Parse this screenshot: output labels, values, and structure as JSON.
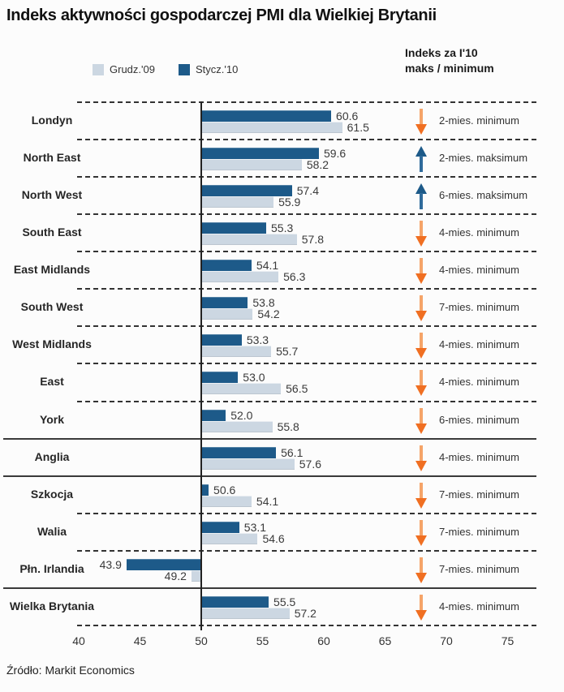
{
  "title": "Indeks aktywności gospodarczej PMI dla Wielkiej Brytanii",
  "legend": {
    "items": [
      {
        "label": "Grudz.'09",
        "color": "#ccd7e2"
      },
      {
        "label": "Stycz.'10",
        "color": "#1d5a89"
      }
    ]
  },
  "right_header": {
    "line1": "Indeks za I'10",
    "line2": "maks / minimum"
  },
  "source": "Źródło: Markit Economics",
  "colors": {
    "bar_dark": "#1d5a89",
    "bar_light": "#ccd7e2",
    "arrow_down": "#f06f22",
    "arrow_down_stem": "#f5a469",
    "arrow_up": "#1d5a89",
    "arrow_up_stem": "#2f6b9b"
  },
  "chart_data": {
    "type": "bar",
    "orientation": "horizontal",
    "title": "Indeks aktywności gospodarczej PMI dla Wielkiej Brytanii",
    "series_names": [
      "Stycz.'10",
      "Grudz.'09"
    ],
    "baseline": 50,
    "xlim": [
      40,
      77.5
    ],
    "ticks": [
      40,
      45,
      50,
      55,
      60,
      65,
      70,
      75
    ],
    "grid": "dashed-row-separators",
    "legend_position": "top",
    "rows": [
      {
        "region": "Londyn",
        "stycz10": 60.6,
        "grudz09": 61.5,
        "trend": "down",
        "note": "2-mies. minimum",
        "separator_top": "dashed"
      },
      {
        "region": "North East",
        "stycz10": 59.6,
        "grudz09": 58.2,
        "trend": "up",
        "note": "2-mies. maksimum",
        "separator_top": "dashed"
      },
      {
        "region": "North West",
        "stycz10": 57.4,
        "grudz09": 55.9,
        "trend": "up",
        "note": "6-mies. maksimum",
        "separator_top": "dashed"
      },
      {
        "region": "South East",
        "stycz10": 55.3,
        "grudz09": 57.8,
        "trend": "down",
        "note": "4-mies. minimum",
        "separator_top": "dashed"
      },
      {
        "region": "East Midlands",
        "stycz10": 54.1,
        "grudz09": 56.3,
        "trend": "down",
        "note": "4-mies. minimum",
        "separator_top": "dashed"
      },
      {
        "region": "South West",
        "stycz10": 53.8,
        "grudz09": 54.2,
        "trend": "down",
        "note": "7-mies. minimum",
        "separator_top": "dashed"
      },
      {
        "region": "West Midlands",
        "stycz10": 53.3,
        "grudz09": 55.7,
        "trend": "down",
        "note": "4-mies. minimum",
        "separator_top": "dashed"
      },
      {
        "region": "East",
        "stycz10": 53.0,
        "grudz09": 56.5,
        "trend": "down",
        "note": "4-mies. minimum",
        "separator_top": "dashed"
      },
      {
        "region": "York",
        "stycz10": 52.0,
        "grudz09": 55.8,
        "trend": "down",
        "note": "6-mies. minimum",
        "separator_top": "dashed"
      },
      {
        "region": "Anglia",
        "stycz10": 56.1,
        "grudz09": 57.6,
        "trend": "down",
        "note": "4-mies. minimum",
        "separator_top": "solid"
      },
      {
        "region": "Szkocja",
        "stycz10": 50.6,
        "grudz09": 54.1,
        "trend": "down",
        "note": "7-mies. minimum",
        "separator_top": "solid"
      },
      {
        "region": "Walia",
        "stycz10": 53.1,
        "grudz09": 54.6,
        "trend": "down",
        "note": "7-mies. minimum",
        "separator_top": "dashed"
      },
      {
        "region": "Płn. Irlandia",
        "stycz10": 43.9,
        "grudz09": 49.2,
        "trend": "down",
        "note": "7-mies. minimum",
        "separator_top": "dashed"
      },
      {
        "region": "Wielka Brytania",
        "stycz10": 55.5,
        "grudz09": 57.2,
        "trend": "down",
        "note": "4-mies. minimum",
        "separator_top": "solid"
      }
    ],
    "bottom_separator": "dashed"
  }
}
